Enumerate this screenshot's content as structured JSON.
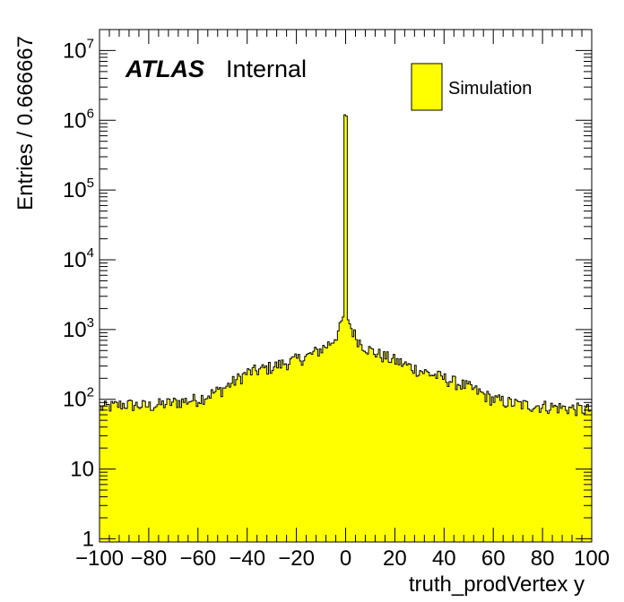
{
  "chart_data": {
    "type": "bar",
    "style": "histogram",
    "xlabel": "truth_prodVertex y",
    "ylabel": "Entries / 0.666667",
    "xlim": [
      -100,
      100
    ],
    "ylim": [
      0.9,
      20000000
    ],
    "yscale": "log",
    "x_ticks": [
      -100,
      -80,
      -60,
      -40,
      -20,
      0,
      20,
      40,
      60,
      80,
      100
    ],
    "y_ticks": [
      {
        "value": 1,
        "base": "1",
        "exp": ""
      },
      {
        "value": 10,
        "base": "10",
        "exp": ""
      },
      {
        "value": 100,
        "base": "10",
        "exp": "2"
      },
      {
        "value": 1000,
        "base": "10",
        "exp": "3"
      },
      {
        "value": 10000,
        "base": "10",
        "exp": "4"
      },
      {
        "value": 100000,
        "base": "10",
        "exp": "5"
      },
      {
        "value": 1000000,
        "base": "10",
        "exp": "6"
      },
      {
        "value": 10000000,
        "base": "10",
        "exp": "7"
      }
    ],
    "bin_width": 0.666667,
    "fill_color": "#ffff00",
    "line_color": "#000000",
    "legend": {
      "position": "top-right",
      "entries": [
        "Simulation"
      ]
    },
    "annotation": {
      "bold": "ATLAS",
      "normal": "Internal"
    },
    "profile": [
      [
        -100,
        75
      ],
      [
        -90,
        85
      ],
      [
        -80,
        80
      ],
      [
        -70,
        90
      ],
      [
        -60,
        100
      ],
      [
        -50,
        140
      ],
      [
        -40,
        240
      ],
      [
        -30,
        290
      ],
      [
        -20,
        370
      ],
      [
        -15,
        420
      ],
      [
        -10,
        520
      ],
      [
        -6,
        650
      ],
      [
        -4,
        800
      ],
      [
        -2,
        1100
      ],
      [
        -1,
        1500
      ],
      [
        -0.5,
        3000
      ],
      [
        0,
        1200000
      ],
      [
        0.5,
        3000
      ],
      [
        1,
        1500
      ],
      [
        2,
        1100
      ],
      [
        4,
        800
      ],
      [
        6,
        650
      ],
      [
        10,
        500
      ],
      [
        15,
        420
      ],
      [
        20,
        360
      ],
      [
        30,
        260
      ],
      [
        40,
        200
      ],
      [
        50,
        150
      ],
      [
        60,
        100
      ],
      [
        70,
        85
      ],
      [
        80,
        80
      ],
      [
        90,
        75
      ],
      [
        100,
        70
      ]
    ],
    "spikes": [
      {
        "x": -0.333,
        "value": 5500
      },
      {
        "x": 0,
        "value": 1200000
      },
      {
        "x": 0.333,
        "value": 1150000
      }
    ]
  }
}
